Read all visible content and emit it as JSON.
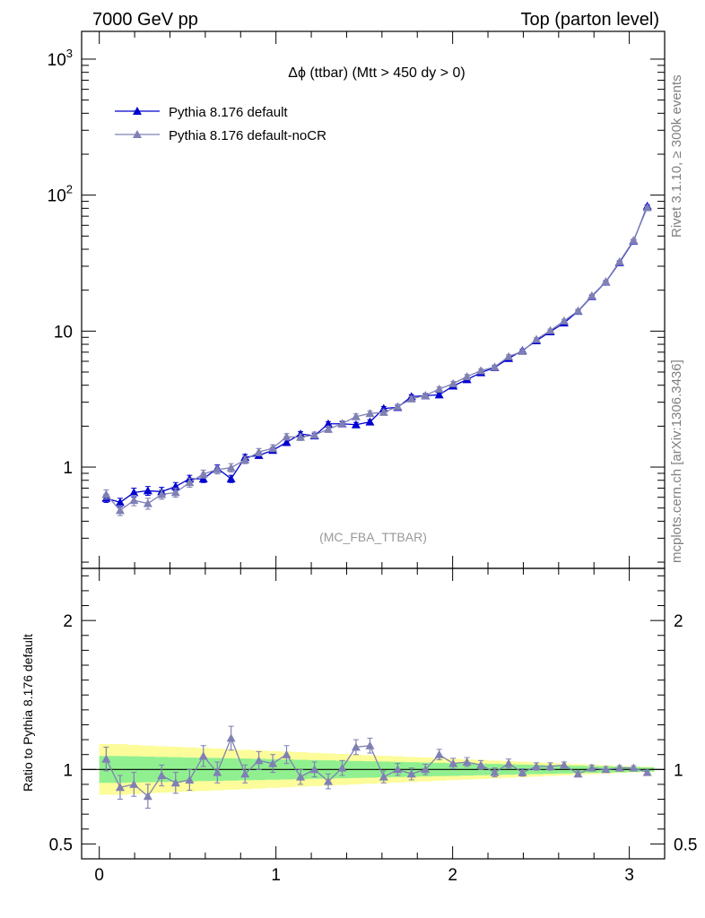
{
  "header": {
    "left": "7000 GeV pp",
    "right": "Top (parton level)"
  },
  "side": {
    "rivet": "Rivet 3.1.10, ≥ 300k events",
    "mcplots": "mcplots.cern.ch [arXiv:1306.3436]"
  },
  "main": {
    "annotation": "Δϕ (ttbar) (Mtt > 450 dy > 0)",
    "watermark": "(MC_FBA_TTBAR)"
  },
  "ratio": {
    "ylabel": "Ratio to Pythia 8.176 default"
  },
  "colors": {
    "default": "#0000d0",
    "nocr": "#7f80b3",
    "band_inner": "#90f090",
    "band_outer": "#fcfc9a"
  },
  "chart_data": [
    {
      "type": "line",
      "yscale": "log",
      "xlim": [
        -0.1,
        3.2
      ],
      "ylim": [
        0.18,
        1600
      ],
      "yticks": [
        {
          "v": 1,
          "label": "1"
        },
        {
          "v": 10,
          "label": "10"
        },
        {
          "v": 100,
          "label": "10",
          "sup": "2"
        },
        {
          "v": 1000,
          "label": "10",
          "sup": "3"
        }
      ],
      "x": [
        0.039,
        0.118,
        0.196,
        0.275,
        0.353,
        0.432,
        0.511,
        0.589,
        0.668,
        0.746,
        0.825,
        0.903,
        0.982,
        1.06,
        1.139,
        1.218,
        1.296,
        1.375,
        1.453,
        1.532,
        1.61,
        1.689,
        1.767,
        1.846,
        1.924,
        2.003,
        2.081,
        2.16,
        2.238,
        2.317,
        2.395,
        2.474,
        2.553,
        2.631,
        2.71,
        2.788,
        2.867,
        2.945,
        3.024,
        3.102
      ],
      "series": [
        {
          "name": "Pythia 8.176 default",
          "values": [
            0.59,
            0.55,
            0.65,
            0.67,
            0.66,
            0.72,
            0.82,
            0.82,
            0.98,
            0.82,
            1.18,
            1.22,
            1.33,
            1.52,
            1.75,
            1.7,
            2.08,
            2.08,
            2.05,
            2.15,
            2.7,
            2.75,
            3.3,
            3.35,
            3.4,
            3.95,
            4.4,
            4.95,
            5.4,
            6.3,
            7.2,
            8.5,
            9.9,
            11.5,
            14.0,
            18.0,
            23.0,
            32.0,
            46.0,
            83.0
          ],
          "err": [
            0.04,
            0.04,
            0.05,
            0.05,
            0.05,
            0.05,
            0.05,
            0.05,
            0.06,
            0.05,
            0.06,
            0.06,
            0.06,
            0.07,
            0.07,
            0.07,
            0.08,
            0.08,
            0.08,
            0.08,
            0.09,
            0.09,
            0.1,
            0.1,
            0.1,
            0.11,
            0.12,
            0.13,
            0.14,
            0.15,
            0.17,
            0.19,
            0.21,
            0.24,
            0.28,
            0.35,
            0.43,
            0.58,
            0.82,
            1.4
          ]
        },
        {
          "name": "Pythia 8.176 default-noCR",
          "values": [
            0.63,
            0.48,
            0.57,
            0.54,
            0.63,
            0.65,
            0.77,
            0.89,
            0.96,
            0.99,
            1.13,
            1.29,
            1.38,
            1.67,
            1.66,
            1.72,
            1.9,
            2.09,
            2.35,
            2.48,
            2.53,
            2.78,
            3.18,
            3.36,
            3.75,
            4.11,
            4.63,
            5.12,
            5.45,
            6.5,
            7.1,
            8.7,
            10.1,
            11.9,
            14.1,
            18.2,
            23.1,
            32.4,
            46.5,
            81.0
          ],
          "err": [
            0.05,
            0.04,
            0.05,
            0.05,
            0.05,
            0.05,
            0.06,
            0.06,
            0.07,
            0.07,
            0.07,
            0.08,
            0.08,
            0.09,
            0.09,
            0.09,
            0.1,
            0.1,
            0.11,
            0.11,
            0.11,
            0.12,
            0.13,
            0.13,
            0.14,
            0.15,
            0.16,
            0.17,
            0.18,
            0.2,
            0.21,
            0.24,
            0.27,
            0.3,
            0.35,
            0.43,
            0.53,
            0.72,
            1.0,
            1.7
          ]
        }
      ]
    },
    {
      "type": "line",
      "ylabel": "Ratio to Pythia 8.176 default",
      "xlim": [
        -0.1,
        3.2
      ],
      "ylim": [
        0.4,
        2.35
      ],
      "yticks": [
        0.5,
        1,
        2
      ],
      "xticks": [
        0,
        1,
        2,
        3
      ],
      "reference": 1,
      "x": [
        0.039,
        0.118,
        0.196,
        0.275,
        0.353,
        0.432,
        0.511,
        0.589,
        0.668,
        0.746,
        0.825,
        0.903,
        0.982,
        1.06,
        1.139,
        1.218,
        1.296,
        1.375,
        1.453,
        1.532,
        1.61,
        1.689,
        1.767,
        1.846,
        1.924,
        2.003,
        2.081,
        2.16,
        2.238,
        2.317,
        2.395,
        2.474,
        2.553,
        2.631,
        2.71,
        2.788,
        2.867,
        2.945,
        3.024,
        3.102
      ],
      "band_inner": [
        0.09,
        0.09,
        0.088,
        0.086,
        0.084,
        0.082,
        0.08,
        0.078,
        0.077,
        0.075,
        0.073,
        0.071,
        0.069,
        0.067,
        0.065,
        0.063,
        0.061,
        0.059,
        0.057,
        0.055,
        0.053,
        0.051,
        0.049,
        0.047,
        0.045,
        0.043,
        0.041,
        0.039,
        0.037,
        0.035,
        0.033,
        0.031,
        0.029,
        0.027,
        0.025,
        0.023,
        0.021,
        0.019,
        0.017,
        0.015
      ],
      "band_outer": [
        0.17,
        0.17,
        0.165,
        0.16,
        0.156,
        0.152,
        0.148,
        0.144,
        0.14,
        0.136,
        0.132,
        0.128,
        0.124,
        0.12,
        0.116,
        0.112,
        0.108,
        0.104,
        0.1,
        0.096,
        0.092,
        0.088,
        0.084,
        0.08,
        0.076,
        0.072,
        0.068,
        0.064,
        0.06,
        0.056,
        0.052,
        0.048,
        0.044,
        0.04,
        0.036,
        0.032,
        0.028,
        0.024,
        0.02,
        0.018
      ],
      "series": [
        {
          "name": "Pythia 8.176 default-noCR",
          "values": [
            1.07,
            0.88,
            0.9,
            0.82,
            0.96,
            0.91,
            0.93,
            1.09,
            0.98,
            1.21,
            0.97,
            1.06,
            1.04,
            1.1,
            0.95,
            1.0,
            0.92,
            1.01,
            1.15,
            1.16,
            0.95,
            1.0,
            0.97,
            1.0,
            1.1,
            1.04,
            1.05,
            1.03,
            0.98,
            1.04,
            0.98,
            1.02,
            1.02,
            1.03,
            0.97,
            1.01,
            1.0,
            1.01,
            1.01,
            0.98
          ],
          "err": [
            0.08,
            0.08,
            0.08,
            0.08,
            0.07,
            0.07,
            0.07,
            0.07,
            0.07,
            0.08,
            0.06,
            0.06,
            0.06,
            0.06,
            0.05,
            0.05,
            0.05,
            0.05,
            0.05,
            0.05,
            0.04,
            0.04,
            0.04,
            0.035,
            0.035,
            0.035,
            0.03,
            0.03,
            0.03,
            0.03,
            0.025,
            0.025,
            0.025,
            0.02,
            0.02,
            0.02,
            0.02,
            0.015,
            0.015,
            0.015
          ]
        }
      ]
    }
  ]
}
